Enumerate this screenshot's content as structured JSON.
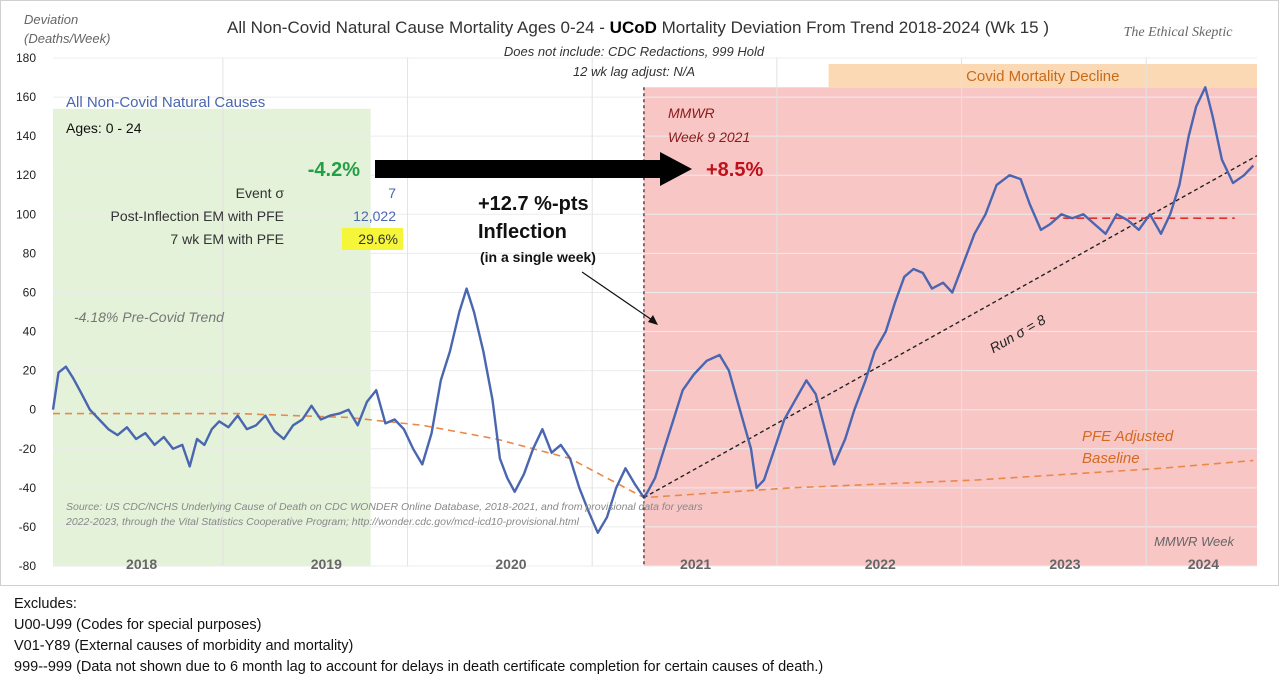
{
  "chart_data": {
    "type": "line",
    "title_prefix": "All Non-Covid Natural Cause Mortality Ages 0-24 - ",
    "title_bold": "UCoD",
    "title_suffix": " Mortality Deviation From Trend  2018-2024 (Wk 15 )",
    "brand": "The Ethical Skeptic",
    "subtitle_lines": [
      "Does not include: CDC Redactions, 999 Hold",
      "12 wk lag adjust: N/A"
    ],
    "ylabel_lines": [
      "Deviation",
      "(Deaths/Week)"
    ],
    "xlabel": "MMWR Week",
    "ylim": [
      -80,
      180
    ],
    "yticks": [
      -80,
      -60,
      -40,
      -20,
      0,
      20,
      40,
      60,
      80,
      100,
      120,
      140,
      160,
      180
    ],
    "years": [
      "2018",
      "2019",
      "2020",
      "2021",
      "2022",
      "2023",
      "2024"
    ],
    "series": [
      {
        "name": "All Non-Covid Natural Causes",
        "color": "#4a66b0",
        "points": [
          [
            2018.0,
            0
          ],
          [
            2018.03,
            19
          ],
          [
            2018.07,
            22
          ],
          [
            2018.11,
            16
          ],
          [
            2018.15,
            9
          ],
          [
            2018.2,
            0
          ],
          [
            2018.25,
            -5
          ],
          [
            2018.3,
            -10
          ],
          [
            2018.35,
            -13
          ],
          [
            2018.4,
            -9
          ],
          [
            2018.45,
            -15
          ],
          [
            2018.5,
            -12
          ],
          [
            2018.55,
            -18
          ],
          [
            2018.6,
            -14
          ],
          [
            2018.65,
            -20
          ],
          [
            2018.7,
            -18
          ],
          [
            2018.74,
            -29
          ],
          [
            2018.78,
            -15
          ],
          [
            2018.82,
            -18
          ],
          [
            2018.86,
            -10
          ],
          [
            2018.9,
            -6
          ],
          [
            2018.95,
            -9
          ],
          [
            2019.0,
            -3
          ],
          [
            2019.05,
            -10
          ],
          [
            2019.1,
            -8
          ],
          [
            2019.15,
            -3
          ],
          [
            2019.2,
            -11
          ],
          [
            2019.25,
            -15
          ],
          [
            2019.3,
            -8
          ],
          [
            2019.35,
            -5
          ],
          [
            2019.4,
            2
          ],
          [
            2019.45,
            -5
          ],
          [
            2019.5,
            -3
          ],
          [
            2019.55,
            -2
          ],
          [
            2019.6,
            0
          ],
          [
            2019.65,
            -8
          ],
          [
            2019.7,
            4
          ],
          [
            2019.75,
            10
          ],
          [
            2019.8,
            -7
          ],
          [
            2019.85,
            -5
          ],
          [
            2019.9,
            -10
          ],
          [
            2019.95,
            -20
          ],
          [
            2020.0,
            -28
          ],
          [
            2020.05,
            -12
          ],
          [
            2020.1,
            15
          ],
          [
            2020.15,
            30
          ],
          [
            2020.2,
            50
          ],
          [
            2020.24,
            62
          ],
          [
            2020.28,
            50
          ],
          [
            2020.33,
            30
          ],
          [
            2020.38,
            5
          ],
          [
            2020.42,
            -25
          ],
          [
            2020.46,
            -35
          ],
          [
            2020.5,
            -42
          ],
          [
            2020.55,
            -33
          ],
          [
            2020.6,
            -20
          ],
          [
            2020.65,
            -10
          ],
          [
            2020.7,
            -22
          ],
          [
            2020.75,
            -18
          ],
          [
            2020.8,
            -25
          ],
          [
            2020.85,
            -40
          ],
          [
            2020.9,
            -52
          ],
          [
            2020.95,
            -63
          ],
          [
            2021.0,
            -55
          ],
          [
            2021.05,
            -40
          ],
          [
            2021.1,
            -30
          ],
          [
            2021.15,
            -38
          ],
          [
            2021.2,
            -45
          ],
          [
            2021.22,
            -42
          ],
          [
            2021.26,
            -35
          ],
          [
            2021.31,
            -20
          ],
          [
            2021.36,
            -5
          ],
          [
            2021.41,
            10
          ],
          [
            2021.47,
            18
          ],
          [
            2021.54,
            25
          ],
          [
            2021.61,
            28
          ],
          [
            2021.66,
            20
          ],
          [
            2021.72,
            0
          ],
          [
            2021.78,
            -20
          ],
          [
            2021.81,
            -40
          ],
          [
            2021.85,
            -36
          ],
          [
            2021.9,
            -22
          ],
          [
            2021.96,
            -5
          ],
          [
            2022.02,
            5
          ],
          [
            2022.08,
            15
          ],
          [
            2022.13,
            8
          ],
          [
            2022.18,
            -10
          ],
          [
            2022.23,
            -28
          ],
          [
            2022.29,
            -15
          ],
          [
            2022.34,
            0
          ],
          [
            2022.4,
            15
          ],
          [
            2022.45,
            30
          ],
          [
            2022.51,
            40
          ],
          [
            2022.56,
            55
          ],
          [
            2022.61,
            68
          ],
          [
            2022.66,
            72
          ],
          [
            2022.71,
            70
          ],
          [
            2022.76,
            62
          ],
          [
            2022.82,
            65
          ],
          [
            2022.87,
            60
          ],
          [
            2022.93,
            75
          ],
          [
            2022.99,
            90
          ],
          [
            2023.05,
            100
          ],
          [
            2023.11,
            115
          ],
          [
            2023.18,
            120
          ],
          [
            2023.24,
            118
          ],
          [
            2023.29,
            105
          ],
          [
            2023.35,
            92
          ],
          [
            2023.4,
            95
          ],
          [
            2023.46,
            100
          ],
          [
            2023.52,
            98
          ],
          [
            2023.58,
            100
          ],
          [
            2023.64,
            95
          ],
          [
            2023.7,
            90
          ],
          [
            2023.76,
            100
          ],
          [
            2023.82,
            97
          ],
          [
            2023.88,
            92
          ],
          [
            2023.94,
            100
          ],
          [
            2024.0,
            90
          ],
          [
            2024.05,
            100
          ],
          [
            2024.1,
            115
          ],
          [
            2024.15,
            140
          ],
          [
            2024.19,
            155
          ],
          [
            2024.24,
            165
          ],
          [
            2024.28,
            150
          ],
          [
            2024.33,
            128
          ],
          [
            2024.39,
            116
          ],
          [
            2024.45,
            120
          ],
          [
            2024.5,
            125
          ]
        ]
      },
      {
        "name": "PFE Adjusted Baseline",
        "color": "#e8894a",
        "points": [
          [
            2018.0,
            -2
          ],
          [
            2019.0,
            -2
          ],
          [
            2019.6,
            -4
          ],
          [
            2020.0,
            -8
          ],
          [
            2020.4,
            -15
          ],
          [
            2020.8,
            -25
          ],
          [
            2021.0,
            -35
          ],
          [
            2021.2,
            -45
          ],
          [
            2022.0,
            -40
          ],
          [
            2023.0,
            -36
          ],
          [
            2024.0,
            -30
          ],
          [
            2024.5,
            -26
          ]
        ]
      },
      {
        "name": "Run σ = 8",
        "color": "#222222",
        "points": [
          [
            2021.2,
            -45
          ],
          [
            2024.52,
            130
          ]
        ]
      },
      {
        "name": "2023 level",
        "color": "#e03030",
        "points": [
          [
            2023.4,
            98
          ],
          [
            2024.4,
            98
          ]
        ]
      }
    ],
    "annotations": {
      "legend_series": "All Non-Covid Natural Causes",
      "legend_ages": "Ages: 0 - 24",
      "pre_change": "-4.2%",
      "post_change": "+8.5%",
      "stats": [
        {
          "label": "Event σ",
          "value": "7"
        },
        {
          "label": "Post-Inflection EM with PFE",
          "value": "12,022"
        },
        {
          "label": "7 wk EM with PFE",
          "value": "29.6%"
        }
      ],
      "inflection_lines": [
        "+12.7 %-pts",
        "Inflection",
        "(in a single week)"
      ],
      "mmwr_lines": [
        "MMWR",
        "Week 9 2021"
      ],
      "covid_decline": "Covid Mortality Decline",
      "pre_covid_trend": "-4.18% Pre-Covid Trend",
      "run_sigma": "Run σ = 8",
      "pfe_lines": [
        "PFE Adjusted",
        "Baseline"
      ],
      "source_lines": [
        "Source: US CDC/NCHS Underlying Cause of Death on CDC WONDER Online Database, 2018-2021, and from provisional data for years",
        "2022-2023, through the Vital Statistics Cooperative Program; http://wonder.cdc.gov/mcd-icd10-provisional.html"
      ]
    },
    "colors": {
      "green_zone": "#e3f2d9",
      "red_zone": "#f9c6c6",
      "orange_band": "#fbd9b5",
      "pre_label": "#22a045",
      "post_label": "#c0101a",
      "highlight": "#f5f53a",
      "legend_text": "#4a66b0"
    }
  },
  "footnotes": {
    "heading": "Excludes:",
    "lines": [
      "U00-U99 (Codes for special purposes)",
      "V01-Y89 (External causes of morbidity and mortality)",
      "999--999 (Data not shown due to 6 month lag to account for delays in death certificate completion for certain causes of death.)"
    ]
  }
}
